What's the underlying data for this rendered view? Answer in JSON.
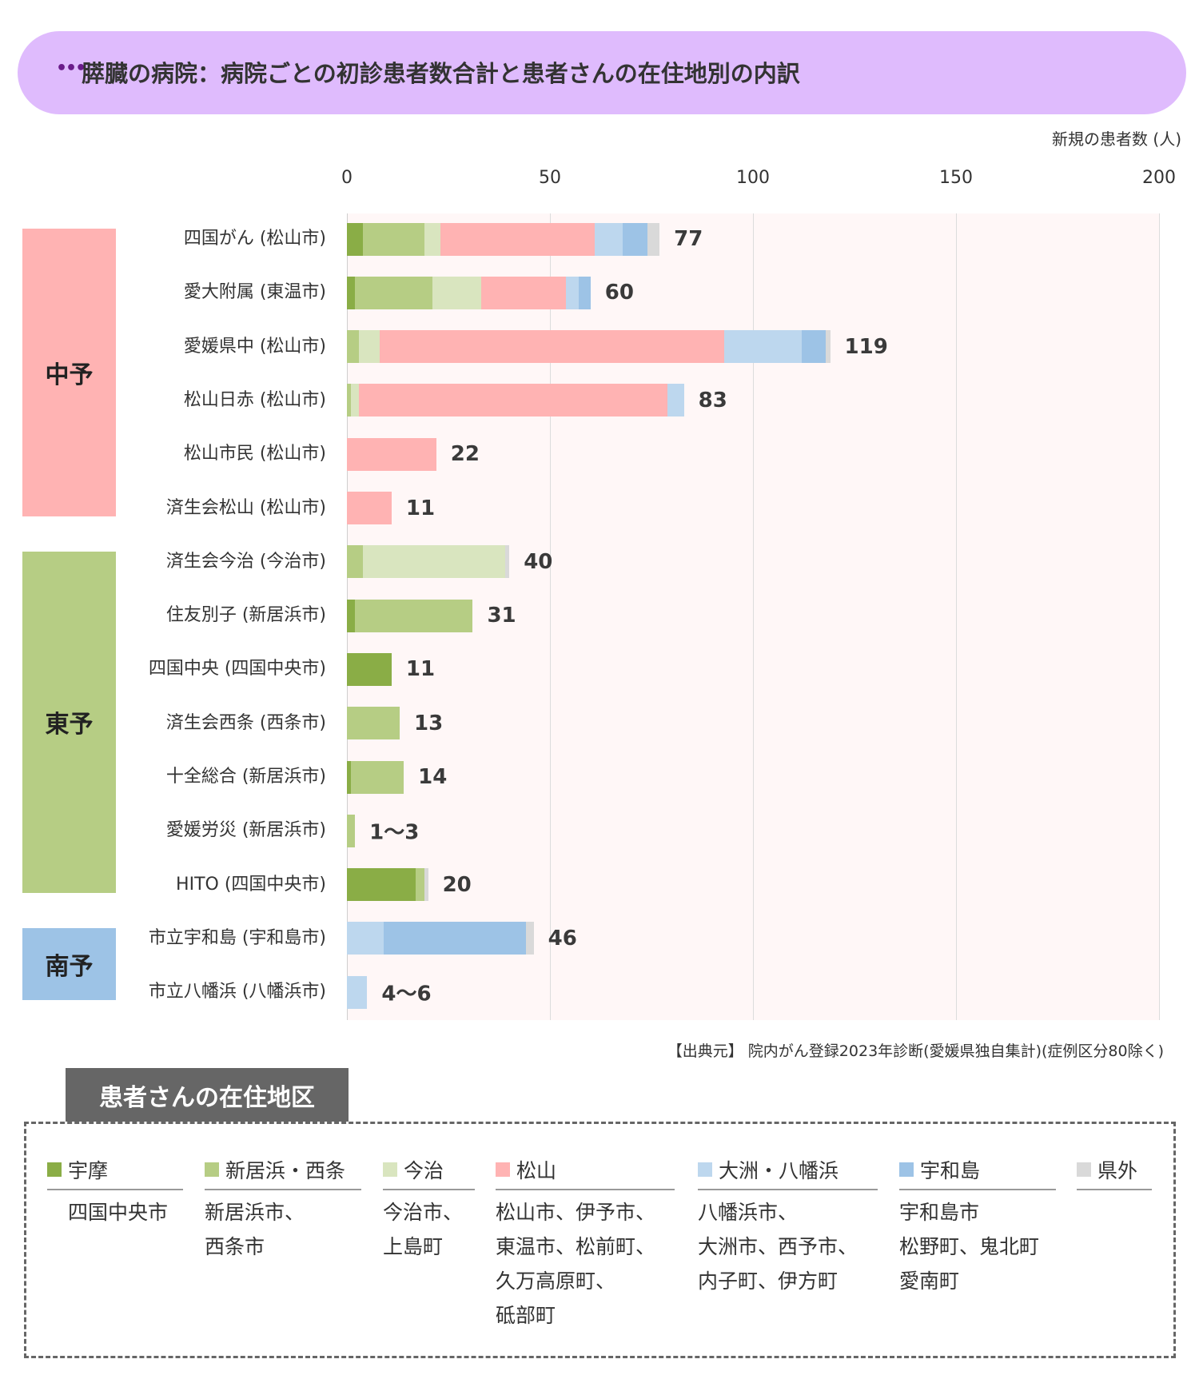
{
  "header": {
    "title": "膵臓の病院：病院ごとの初診患者数合計と患者さんの在住地別の内訳",
    "dots": "•••"
  },
  "colors": {
    "title_bg": "#dfbbfd",
    "plot_bg": "#fff7f7",
    "chuyo": "#ffb3b3",
    "toyo": "#b6cd84",
    "nanyo": "#9dc3e6"
  },
  "regions": [
    {
      "label": "中予",
      "color": "#ffb3b3"
    },
    {
      "label": "東予",
      "color": "#b6cd84"
    },
    {
      "label": "南予",
      "color": "#9dc3e6"
    }
  ],
  "chart_data": {
    "type": "bar",
    "orientation": "horizontal",
    "stacked": true,
    "unit_label": "新規の患者数 (人)",
    "xlim": [
      0,
      200
    ],
    "xticks": [
      "0",
      "50",
      "100",
      "150",
      "200"
    ],
    "grid": true,
    "categories": [
      "四国がん (松山市)",
      "愛大附属 (東温市)",
      "愛媛県中 (松山市)",
      "松山日赤 (松山市)",
      "松山市民 (松山市)",
      "済生会松山 (松山市)",
      "済生会今治 (今治市)",
      "住友別子 (新居浜市)",
      "四国中央 (四国中央市)",
      "済生会西条 (西条市)",
      "十全総合 (新居浜市)",
      "愛媛労災 (新居浜市)",
      "HITO (四国中央市)",
      "市立宇和島 (宇和島市)",
      "市立八幡浜 (八幡浜市)"
    ],
    "category_region": [
      "中予",
      "中予",
      "中予",
      "中予",
      "中予",
      "中予",
      "東予",
      "東予",
      "東予",
      "東予",
      "東予",
      "東予",
      "東予",
      "南予",
      "南予"
    ],
    "totals": [
      "77",
      "60",
      "119",
      "83",
      "22",
      "11",
      "40",
      "31",
      "11",
      "13",
      "14",
      "1～3",
      "20",
      "46",
      "4～6"
    ],
    "series": [
      {
        "name": "宇摩",
        "color": "#8aad46",
        "values": [
          4,
          2,
          0,
          0,
          0,
          0,
          0,
          2,
          11,
          0,
          1,
          0,
          17,
          0,
          0
        ]
      },
      {
        "name": "新居浜・西条",
        "color": "#b6cd84",
        "values": [
          15,
          19,
          3,
          1,
          0,
          0,
          4,
          29,
          0,
          13,
          13,
          2,
          2,
          0,
          0
        ]
      },
      {
        "name": "今治",
        "color": "#d9e5bf",
        "values": [
          4,
          12,
          5,
          2,
          0,
          0,
          35,
          0,
          0,
          0,
          0,
          0,
          0,
          0,
          0
        ]
      },
      {
        "name": "松山",
        "color": "#ffb3b3",
        "values": [
          38,
          21,
          85,
          76,
          22,
          11,
          0,
          0,
          0,
          0,
          0,
          0,
          0,
          0,
          0
        ]
      },
      {
        "name": "大洲・八幡浜",
        "color": "#bdd7ee",
        "values": [
          7,
          3,
          19,
          4,
          0,
          0,
          0,
          0,
          0,
          0,
          0,
          0,
          0,
          9,
          5
        ]
      },
      {
        "name": "宇和島",
        "color": "#9dc3e6",
        "values": [
          6,
          3,
          6,
          0,
          0,
          0,
          0,
          0,
          0,
          0,
          0,
          0,
          0,
          35,
          0
        ]
      },
      {
        "name": "県外",
        "color": "#d9d9d9",
        "values": [
          3,
          0,
          1,
          0,
          0,
          0,
          1,
          0,
          0,
          0,
          0,
          0,
          1,
          2,
          0
        ]
      }
    ]
  },
  "source": "【出典元】 院内がん登録2023年診断(愛媛県独自集計)(症例区分80除く)",
  "legend": {
    "title": "患者さんの在住地区",
    "columns": [
      {
        "name": "宇摩",
        "color": "#8aad46",
        "items": [
          "四国中央市"
        ]
      },
      {
        "name": "新居浜・西条",
        "color": "#b6cd84",
        "items": [
          "新居浜市、",
          "西条市"
        ]
      },
      {
        "name": "今治",
        "color": "#d9e5bf",
        "items": [
          "今治市、",
          "上島町"
        ]
      },
      {
        "name": "松山",
        "color": "#ffb3b3",
        "items": [
          "松山市、伊予市、",
          "東温市、松前町、",
          "久万高原町、",
          "砥部町"
        ]
      },
      {
        "name": "大洲・八幡浜",
        "color": "#bdd7ee",
        "items": [
          "八幡浜市、",
          "大洲市、西予市、",
          "内子町、伊方町"
        ]
      },
      {
        "name": "宇和島",
        "color": "#9dc3e6",
        "items": [
          "宇和島市",
          "松野町、鬼北町",
          "愛南町"
        ]
      },
      {
        "name": "県外",
        "color": "#d9d9d9",
        "items": []
      }
    ]
  }
}
